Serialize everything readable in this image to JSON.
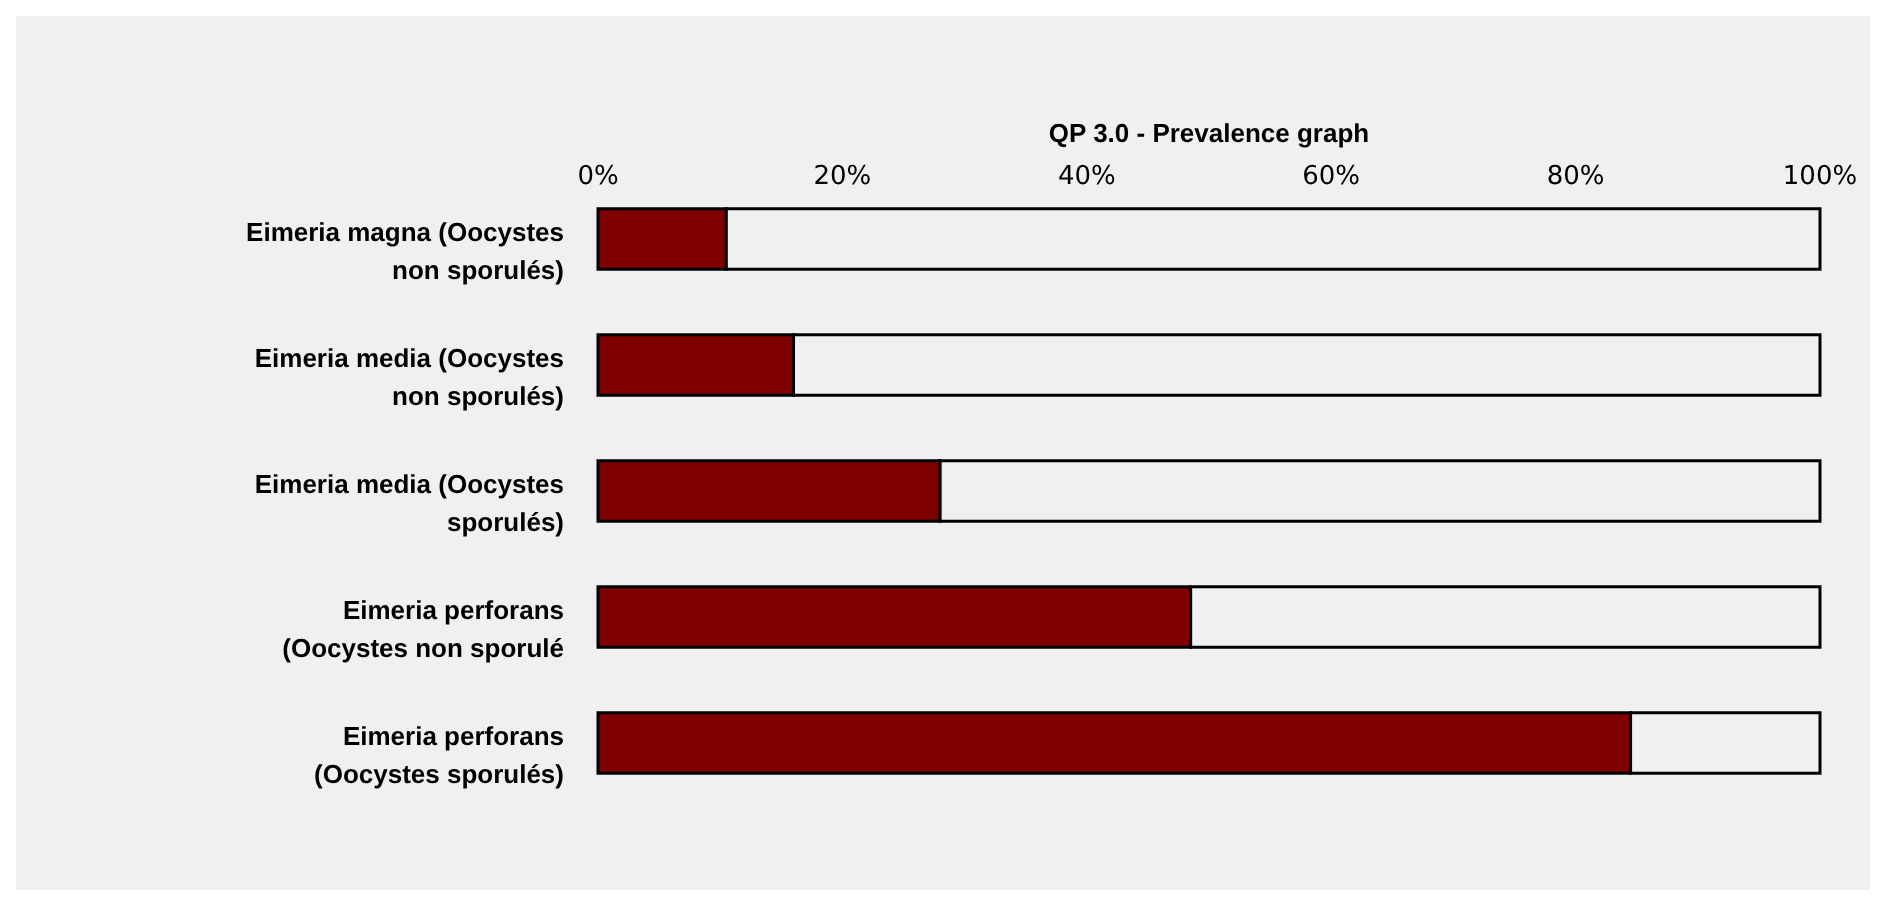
{
  "chart_data": {
    "type": "bar",
    "orientation": "horizontal",
    "stacked": true,
    "title": "QP 3.0 - Prevalence graph",
    "categories": [
      "Eimeria magna (Oocystes non sporulés)",
      "Eimeria media (Oocystes non sporulés)",
      "Eimeria media (Oocystes sporulés)",
      "Eimeria perforans (Oocystes non sporulé",
      "Eimeria perforans (Oocystes sporulés)"
    ],
    "series": [
      {
        "color": "#7f0000",
        "values": [
          10.5,
          16,
          28,
          48.5,
          84.5
        ]
      },
      {
        "color": "#f0f0f0",
        "values": [
          89.5,
          84,
          72,
          51.5,
          15.5
        ]
      }
    ],
    "xlim": [
      0,
      100
    ],
    "xticks": [
      {
        "value": 0,
        "label": "0%"
      },
      {
        "value": 20,
        "label": "20%"
      },
      {
        "value": 40,
        "label": "40%"
      },
      {
        "value": 60,
        "label": "60%"
      },
      {
        "value": 80,
        "label": "80%"
      },
      {
        "value": 100,
        "label": "100%"
      }
    ],
    "grid": false
  }
}
